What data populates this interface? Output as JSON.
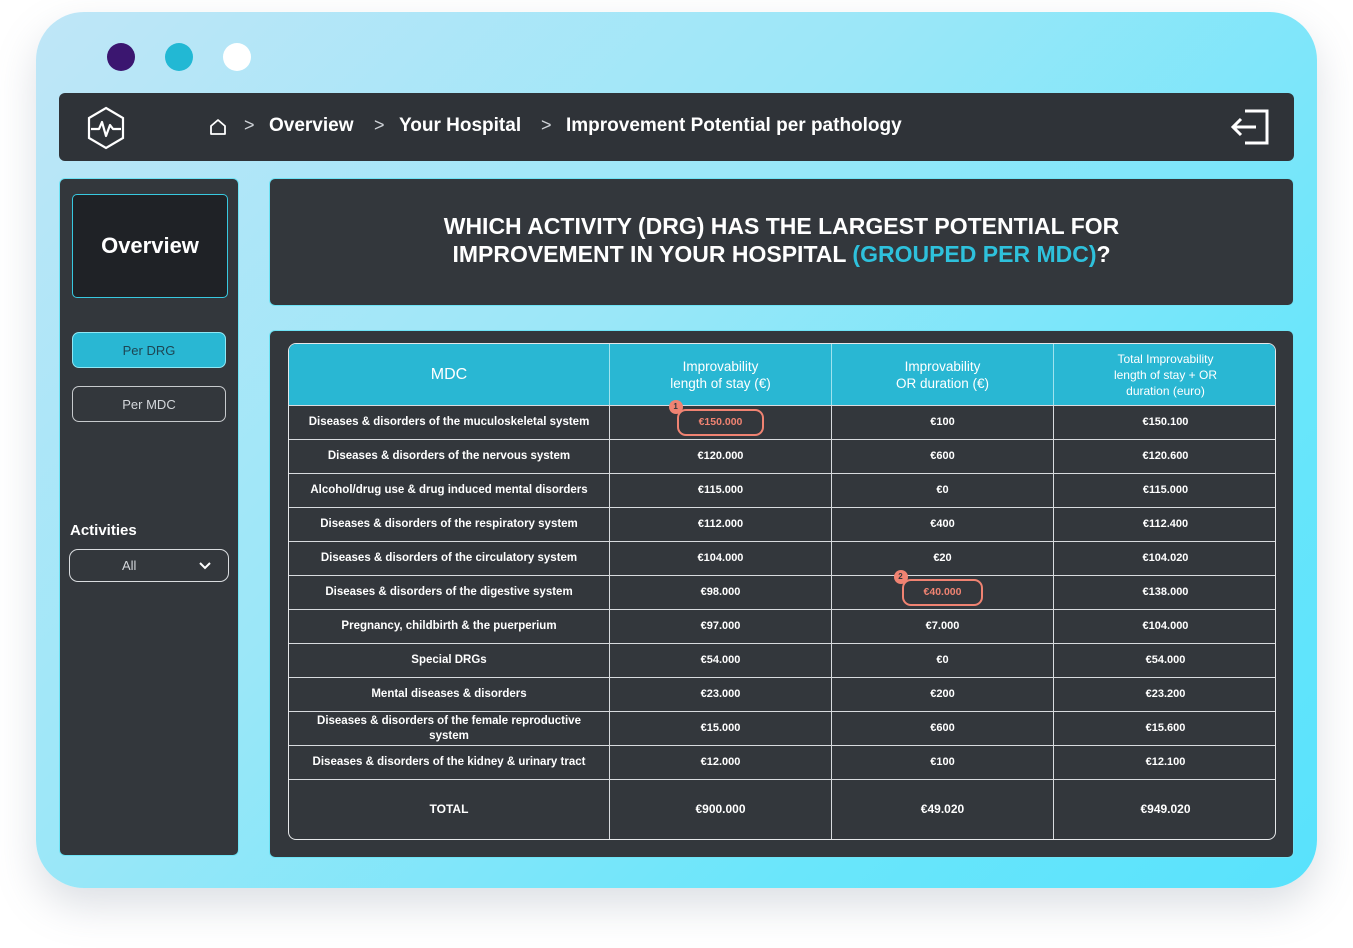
{
  "breadcrumb": {
    "items": [
      "Overview",
      "Your Hospital",
      "Improvement Potential per pathology"
    ],
    "separator": ">"
  },
  "sidebar": {
    "overview_label": "Overview",
    "per_drg_label": "Per DRG",
    "per_mdc_label": "Per MDC",
    "activities_label": "Activities",
    "activities_value": "All"
  },
  "title": {
    "line1": "WHICH ACTIVITY (DRG) HAS THE LARGEST POTENTIAL FOR",
    "line2_prefix": "IMPROVEMENT IN YOUR HOSPITAL ",
    "line2_accent": "(GROUPED PER MDC)",
    "line2_suffix": "?"
  },
  "table": {
    "headers": {
      "mdc": "MDC",
      "los_line1": "Improvability",
      "los_line2": "length of stay (€)",
      "or_line1": "Improvability",
      "or_line2": "OR duration (€)",
      "total_line1": "Total Improvability",
      "total_line2": "length of stay + OR",
      "total_line3": "duration (euro)"
    },
    "rows": [
      {
        "mdc": "Diseases & disorders of the muculoskeletal system",
        "los": "€150.000",
        "or": "€100",
        "total": "€150.100"
      },
      {
        "mdc": "Diseases & disorders of the nervous system",
        "los": "€120.000",
        "or": "€600",
        "total": "€120.600"
      },
      {
        "mdc": "Alcohol/drug use & drug induced mental disorders",
        "los": "€115.000",
        "or": "€0",
        "total": "€115.000"
      },
      {
        "mdc": "Diseases & disorders of the respiratory system",
        "los": "€112.000",
        "or": "€400",
        "total": "€112.400"
      },
      {
        "mdc": "Diseases & disorders of the circulatory system",
        "los": "€104.000",
        "or": "€20",
        "total": "€104.020"
      },
      {
        "mdc": "Diseases & disorders of the digestive system",
        "los": "€98.000",
        "or": "€40.000",
        "total": "€138.000"
      },
      {
        "mdc": "Pregnancy, childbirth & the puerperium",
        "los": "€97.000",
        "or": "€7.000",
        "total": "€104.000"
      },
      {
        "mdc": "Special DRGs",
        "los": "€54.000",
        "or": "€0",
        "total": "€54.000"
      },
      {
        "mdc": "Mental diseases & disorders",
        "los": "€23.000",
        "or": "€200",
        "total": "€23.200"
      },
      {
        "mdc": "Diseases & disorders of the female reproductive system",
        "los": "€15.000",
        "or": "€600",
        "total": "€15.600"
      },
      {
        "mdc": "Diseases & disorders of the kidney & urinary tract",
        "los": "€12.000",
        "or": "€100",
        "total": "€12.100"
      }
    ],
    "total_row": {
      "mdc": "TOTAL",
      "los": "€900.000",
      "or": "€49.020",
      "total": "€949.020"
    },
    "highlights": {
      "badge1": "1",
      "badge2": "2"
    }
  },
  "colors": {
    "accent": "#29b7d3",
    "highlight": "#f08372",
    "panel": "#33373c"
  },
  "icons": [
    "heart-pulse-logo-icon",
    "home-icon",
    "chevron-right-icon",
    "exit-icon",
    "chevron-down-icon"
  ]
}
